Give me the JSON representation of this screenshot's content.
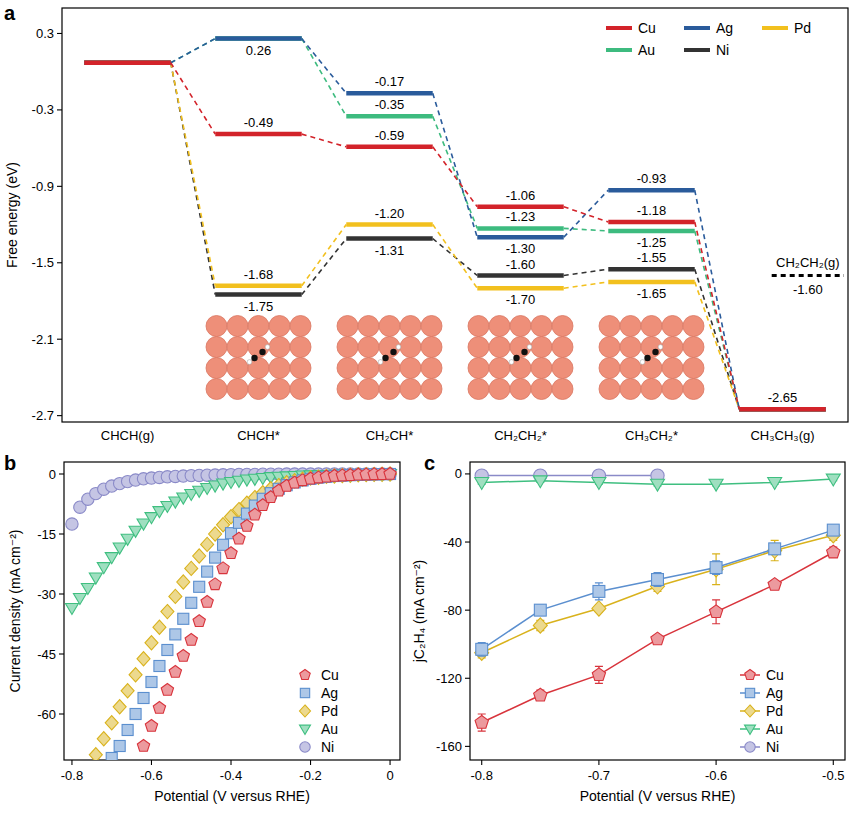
{
  "chart_data": [
    {
      "type": "profile",
      "title": "a",
      "y_label": "Free energy (eV)",
      "categories": [
        "CHCH(g)",
        "CHCH*",
        "CH₂CH*",
        "CH₂CH₂*",
        "CH₃CH₂*",
        "CH₃CH₃(g)"
      ],
      "ylim": [
        -2.75,
        0.5
      ],
      "yticks": [
        0.3,
        -0.3,
        -0.9,
        -1.5,
        -2.1,
        -2.7
      ],
      "legend": "upper right",
      "data_labels": true,
      "line_style": "dashed",
      "series": [
        {
          "name": "Cu",
          "color": "#d3232a",
          "values": [
            0.07,
            -0.49,
            -0.59,
            -1.06,
            -1.18,
            -2.65
          ],
          "value_labels": [
            null,
            "-0.49",
            "-0.59",
            "-1.06",
            "-1.18",
            "-2.65"
          ]
        },
        {
          "name": "Ag",
          "color": "#2a5b9b",
          "values": [
            0.07,
            0.26,
            -0.17,
            -1.3,
            -0.93,
            -2.65
          ],
          "value_labels": [
            null,
            "0.26",
            "-0.17",
            "-1.30",
            "-0.93",
            null
          ]
        },
        {
          "name": "Pd",
          "color": "#f2c01e",
          "values": [
            0.07,
            -1.68,
            -1.2,
            -1.7,
            -1.65,
            -2.65
          ],
          "value_labels": [
            null,
            "-1.68",
            "-1.20",
            "-1.70",
            "-1.65",
            null
          ]
        },
        {
          "name": "Au",
          "color": "#3dbb7f",
          "values": [
            0.07,
            0.26,
            -0.35,
            -1.23,
            -1.25,
            -2.65
          ],
          "value_labels": [
            null,
            null,
            "-0.35",
            "-1.23",
            "-1.25",
            null
          ]
        },
        {
          "name": "Ni",
          "color": "#333333",
          "values": [
            0.07,
            -1.75,
            -1.31,
            -1.6,
            -1.55,
            -2.65
          ],
          "value_labels": [
            null,
            "-1.75",
            "-1.31",
            "-1.60",
            "-1.55",
            null
          ]
        }
      ],
      "reference": {
        "name": "CH₂CH₂(g)",
        "value": -1.6,
        "value_label": "-1.60",
        "color": "#000000",
        "line_style": "dashed"
      }
    },
    {
      "type": "scatter",
      "title": "b",
      "x_label": "Potential (V versus RHE)",
      "y_label": "Current density (mA cm⁻²)",
      "x": [
        0,
        -0.02,
        -0.04,
        -0.06,
        -0.08,
        -0.1,
        -0.12,
        -0.14,
        -0.16,
        -0.18,
        -0.2,
        -0.22,
        -0.24,
        -0.26,
        -0.28,
        -0.3,
        -0.32,
        -0.34,
        -0.36,
        -0.38,
        -0.4,
        -0.42,
        -0.44,
        -0.46,
        -0.48,
        -0.5,
        -0.52,
        -0.54,
        -0.56,
        -0.58,
        -0.6,
        -0.62,
        -0.64,
        -0.66,
        -0.68,
        -0.7,
        -0.72,
        -0.74,
        -0.76,
        -0.78,
        -0.8
      ],
      "xlim": [
        -0.82,
        0.025
      ],
      "xticks": [
        -0.8,
        -0.6,
        -0.4,
        -0.2,
        0
      ],
      "ylim": [
        -71.5,
        3
      ],
      "yticks": [
        0,
        -15,
        -30,
        -45,
        -60
      ],
      "legend": "lower right",
      "series": [
        {
          "name": "Cu",
          "color": "#d8343c",
          "marker": "pentagon",
          "values": [
            0,
            -0.05,
            -0.1,
            -0.15,
            -0.2,
            -0.3,
            -0.4,
            -0.5,
            -0.7,
            -0.9,
            -1.2,
            -1.6,
            -2.2,
            -3.0,
            -4.2,
            -5.8,
            -7.8,
            -10.2,
            -13,
            -16.2,
            -19.8,
            -23.6,
            -27.6,
            -32,
            -36.8,
            -41.5,
            -45.5,
            -49.5,
            -54,
            -58.5,
            -63,
            -68,
            null,
            null,
            null,
            null,
            null,
            null,
            null,
            null,
            null
          ]
        },
        {
          "name": "Ag",
          "color": "#5b8fcf",
          "marker": "square",
          "values": [
            0,
            -0.05,
            -0.1,
            -0.15,
            -0.2,
            -0.3,
            -0.4,
            -0.5,
            -0.7,
            -0.9,
            -1.2,
            -1.6,
            -2.1,
            -2.8,
            -3.7,
            -4.8,
            -6.2,
            -7.9,
            -9.9,
            -12.2,
            -14.8,
            -17.7,
            -20.9,
            -24.4,
            -28.2,
            -32.2,
            -36.2,
            -40.1,
            -44,
            -48,
            -52,
            -56,
            -60,
            -64,
            -68,
            -71,
            null,
            null,
            null,
            null,
            null
          ]
        },
        {
          "name": "Pd",
          "color": "#d9b21c",
          "marker": "diamond",
          "values": [
            0,
            -0.05,
            -0.1,
            -0.15,
            -0.2,
            -0.3,
            -0.4,
            -0.5,
            -0.6,
            -0.8,
            -1.0,
            -1.3,
            -1.7,
            -2.2,
            -2.9,
            -3.7,
            -4.7,
            -5.9,
            -7.3,
            -8.9,
            -10.7,
            -12.7,
            -15,
            -17.6,
            -20.5,
            -23.6,
            -27,
            -30.6,
            -34.4,
            -38.3,
            -42.2,
            -46.2,
            -50.2,
            -54.2,
            -58.2,
            -62.2,
            -66.2,
            -70.2,
            null,
            null,
            null
          ]
        },
        {
          "name": "Au",
          "color": "#3fbf80",
          "marker": "triangle_down",
          "values": [
            0,
            0,
            -0.05,
            -0.05,
            -0.1,
            -0.1,
            -0.15,
            -0.2,
            -0.25,
            -0.3,
            -0.35,
            -0.4,
            -0.5,
            -0.6,
            -0.7,
            -0.8,
            -1.0,
            -1.2,
            -1.4,
            -1.7,
            -2.0,
            -2.4,
            -2.9,
            -3.5,
            -4.2,
            -5.0,
            -5.9,
            -6.9,
            -8.0,
            -9.3,
            -10.8,
            -12.4,
            -14.2,
            -16.2,
            -18.4,
            -20.8,
            -23.3,
            -25.9,
            -28.5,
            -31,
            -33.5
          ]
        },
        {
          "name": "Ni",
          "color": "#8a8ac8",
          "marker": "circle",
          "values": [
            0,
            0,
            0,
            0,
            0,
            0,
            0,
            0,
            0,
            0,
            0,
            0,
            0,
            0,
            -0.05,
            -0.05,
            -0.05,
            -0.1,
            -0.1,
            -0.1,
            -0.15,
            -0.2,
            -0.25,
            -0.3,
            -0.35,
            -0.4,
            -0.5,
            -0.6,
            -0.7,
            -0.85,
            -1.0,
            -1.2,
            -1.5,
            -1.9,
            -2.4,
            -3.0,
            -3.8,
            -4.9,
            -6.3,
            -8.3,
            -12.5
          ]
        }
      ]
    },
    {
      "type": "line",
      "title": "c",
      "x_label": "Potential (V versus RHE)",
      "y_label": "jC₂H₄ (mA cm⁻²)",
      "x": [
        -0.8,
        -0.75,
        -0.7,
        -0.65,
        -0.6,
        -0.55,
        -0.5
      ],
      "xlim": [
        -0.81,
        -0.49
      ],
      "xticks": [
        -0.8,
        -0.7,
        -0.6,
        -0.5
      ],
      "ylim": [
        -168,
        7
      ],
      "yticks": [
        0,
        -40,
        -80,
        -120,
        -160
      ],
      "legend": "lower right",
      "series": [
        {
          "name": "Cu",
          "color": "#d8343c",
          "marker": "pentagon",
          "values": [
            -146,
            -130,
            -118,
            -97,
            -81,
            -65,
            -46
          ],
          "errors": [
            5,
            3,
            5,
            2,
            7,
            2,
            3
          ]
        },
        {
          "name": "Ag",
          "color": "#5b8fcf",
          "marker": "square",
          "values": [
            -103,
            -80,
            -69,
            -62,
            -55,
            -44,
            -33
          ],
          "errors": [
            4,
            3,
            5,
            4,
            4,
            3,
            2
          ]
        },
        {
          "name": "Pd",
          "color": "#d9b21c",
          "marker": "diamond",
          "values": [
            -105,
            -89,
            -79,
            -66,
            -56,
            -45,
            -36
          ],
          "errors": [
            3,
            3,
            2,
            3,
            9,
            6,
            3
          ]
        },
        {
          "name": "Au",
          "color": "#3fbf80",
          "marker": "triangle_down",
          "values": [
            -5,
            -4,
            -5,
            -6,
            -6,
            -5,
            -3
          ],
          "errors": [
            1,
            1,
            1,
            1,
            1,
            1,
            1
          ]
        },
        {
          "name": "Ni",
          "color": "#8a8ac8",
          "marker": "circle",
          "values": [
            -1,
            -1,
            -1,
            -1,
            null,
            null,
            null
          ],
          "errors": [
            0.5,
            0.5,
            0.5,
            0.5,
            null,
            null,
            null
          ]
        }
      ]
    }
  ]
}
